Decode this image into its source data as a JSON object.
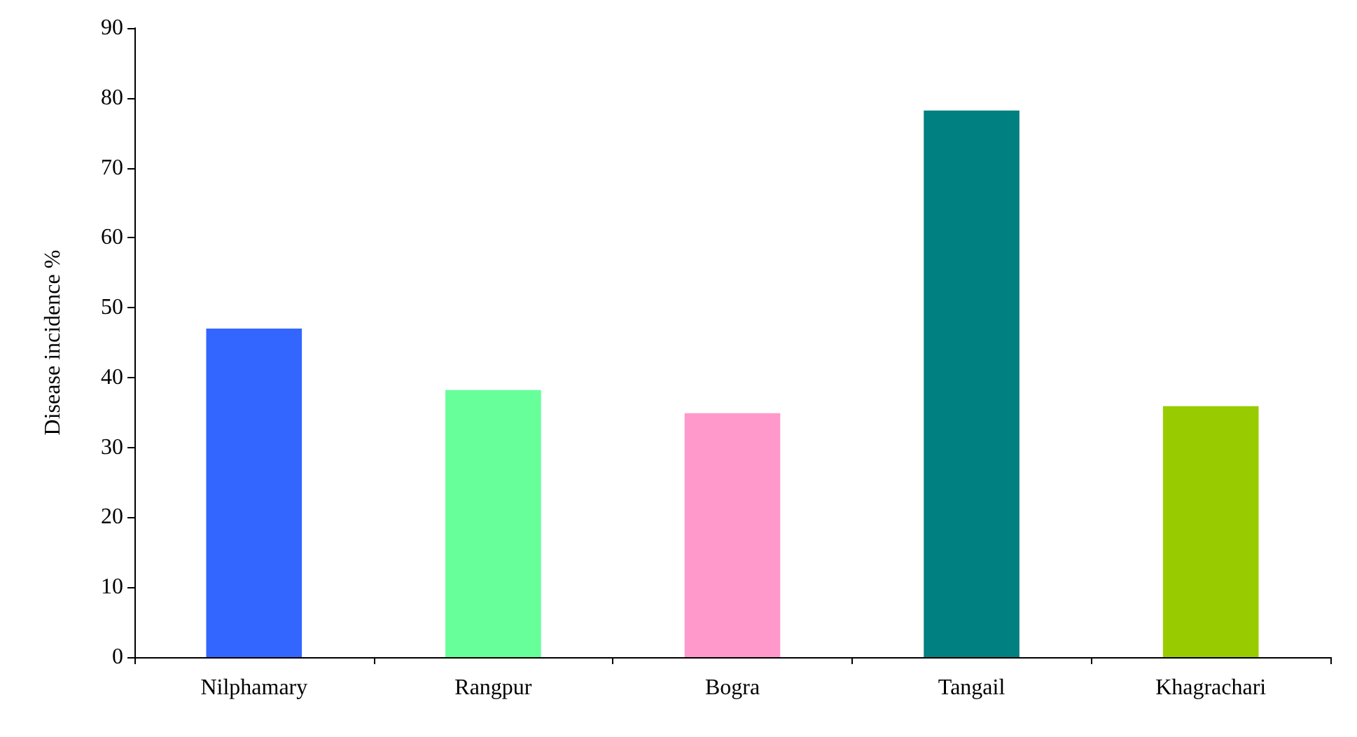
{
  "chart_data": {
    "type": "bar",
    "ylabel": "Disease incidence %",
    "categories": [
      "Nilphamary",
      "Rangpur",
      "Bogra",
      "Tangail",
      "Khagrachari"
    ],
    "values": [
      47,
      38.2,
      34.9,
      78.2,
      35.9
    ],
    "colors": [
      "#3366ff",
      "#66ff99",
      "#ff99cc",
      "#008080",
      "#99cc00"
    ],
    "ylim": [
      0,
      90
    ],
    "yticks": [
      0,
      10,
      20,
      30,
      40,
      50,
      60,
      70,
      80,
      90
    ],
    "grid": false
  }
}
